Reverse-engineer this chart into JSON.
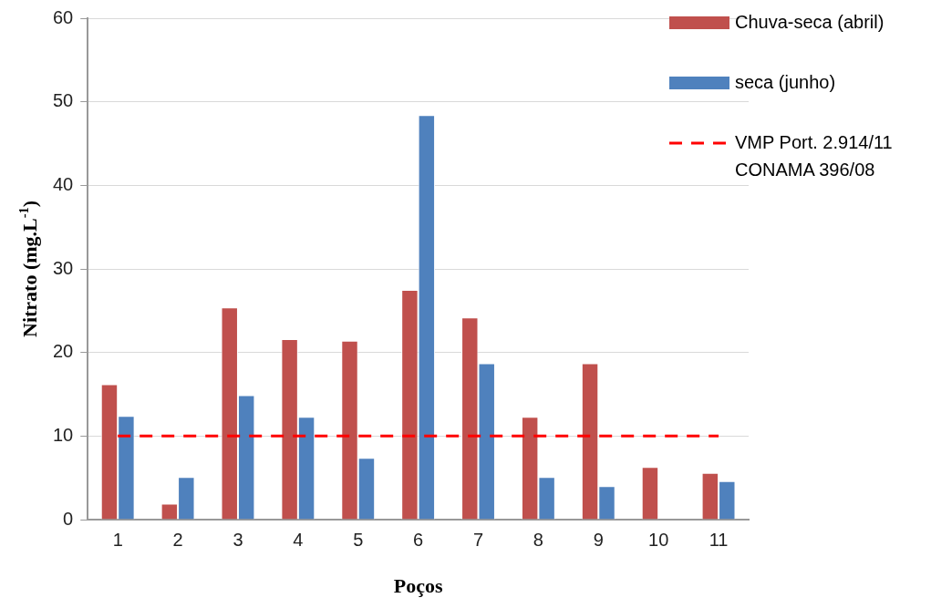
{
  "chart_data": {
    "type": "bar",
    "xlabel": "Poços",
    "ylabel": "Nitrato (mg.L$^{-1}$)",
    "categories": [
      "1",
      "2",
      "3",
      "4",
      "5",
      "6",
      "7",
      "8",
      "9",
      "10",
      "11"
    ],
    "series": [
      {
        "name": "Chuva-seca (abril)",
        "color": "#c0504d",
        "values": [
          16.2,
          1.9,
          25.4,
          21.6,
          21.4,
          27.5,
          24.2,
          12.3,
          18.7,
          6.3,
          5.6
        ]
      },
      {
        "name": "seca (junho)",
        "color": "#4f81bd",
        "values": [
          12.4,
          5.1,
          14.9,
          12.3,
          7.4,
          48.4,
          18.7,
          5.1,
          4.0,
          null,
          4.6
        ]
      }
    ],
    "ylim": [
      0,
      60
    ],
    "yticks": [
      0,
      10,
      20,
      30,
      40,
      50,
      60
    ],
    "grid": "y",
    "legend": "top right",
    "ref_lines": [
      {
        "axis": "y",
        "value": 10,
        "label": "VMP Port. 2.914/11\nCONAMA 396/08",
        "color": "#ff0000",
        "line_style": "dashed"
      }
    ]
  }
}
